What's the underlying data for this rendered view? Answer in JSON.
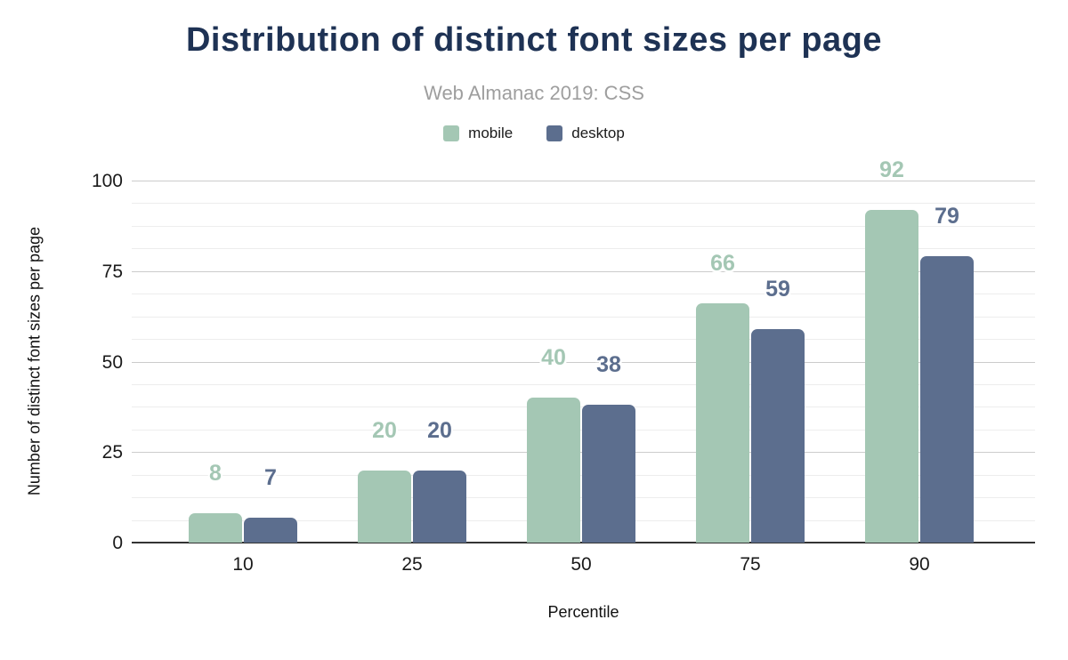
{
  "title": "Distribution of distinct font sizes per page",
  "subtitle": "Web Almanac 2019: CSS",
  "legend": [
    {
      "label": "mobile",
      "color": "#a4c7b4"
    },
    {
      "label": "desktop",
      "color": "#5c6e8e"
    }
  ],
  "chart_data": {
    "type": "bar",
    "categories": [
      "10",
      "25",
      "50",
      "75",
      "90"
    ],
    "series": [
      {
        "name": "mobile",
        "color": "#a4c7b4",
        "values": [
          8,
          20,
          40,
          66,
          92
        ]
      },
      {
        "name": "desktop",
        "color": "#5c6e8e",
        "values": [
          7,
          20,
          38,
          59,
          79
        ]
      }
    ],
    "title": "Distribution of distinct font sizes per page",
    "subtitle": "Web Almanac 2019: CSS",
    "xlabel": "Percentile",
    "ylabel": "Number of distinct font sizes per page",
    "ylim": [
      0,
      100
    ],
    "y_ticks": [
      0,
      25,
      50,
      75,
      100
    ],
    "y_minor_step": 6.25,
    "grid": true,
    "legend_position": "top",
    "annotations": "value labels above each bar in series color"
  },
  "colors": {
    "title": "#1e3254",
    "subtitle": "#9e9e9e",
    "axis_text": "#1a1a1a",
    "grid_major": "#cccccc",
    "grid_minor": "#ededed",
    "baseline": "#333333",
    "background": "#ffffff"
  }
}
